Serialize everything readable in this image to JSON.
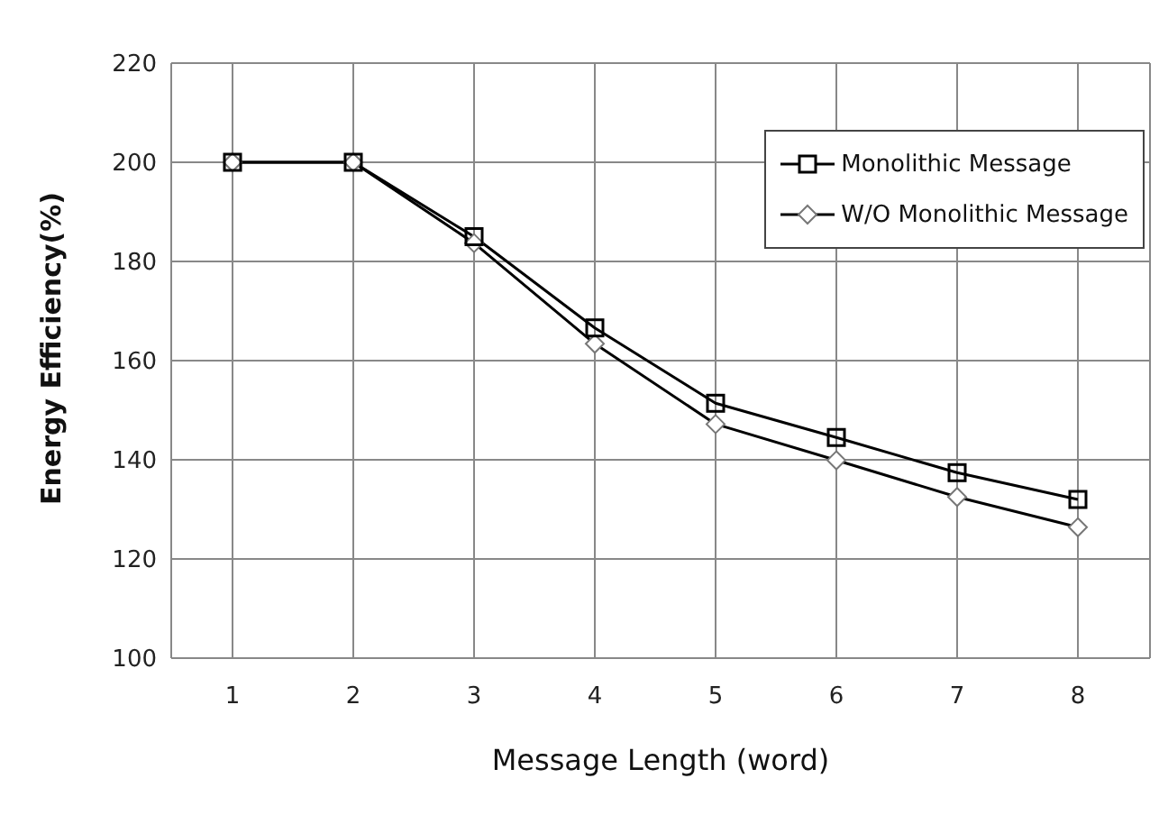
{
  "chart_data": {
    "type": "line",
    "xlabel": "Message Length (word)",
    "ylabel": "Energy Efficiency(%)",
    "categories": [
      "1",
      "2",
      "3",
      "4",
      "5",
      "6",
      "7",
      "8"
    ],
    "series": [
      {
        "name": "Monolithic Message",
        "color": "#000000",
        "marker": "square",
        "values": [
          200,
          200,
          185,
          166.6,
          151.4,
          144.5,
          137.4,
          132
        ]
      },
      {
        "name": "W/O Monolithic Message",
        "color": "#000000",
        "marker": "diamond",
        "values": [
          200,
          200,
          183.7,
          163.4,
          147.2,
          139.9,
          132.5,
          126.4
        ]
      }
    ],
    "ylim": [
      100,
      220
    ],
    "yticks": [
      100,
      120,
      140,
      160,
      180,
      200,
      220
    ],
    "grid": true,
    "legend": "top right"
  }
}
